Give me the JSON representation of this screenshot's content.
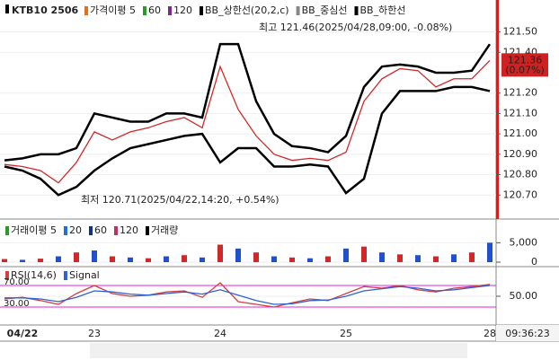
{
  "chart_data": [
    {
      "type": "line",
      "title": "KTB10 2506",
      "legend": [
        {
          "label": "가격이평 5",
          "color": "#e07020"
        },
        {
          "label": "60",
          "color": "#2a9a2a"
        },
        {
          "label": "120",
          "color": "#7a2a8a"
        },
        {
          "label": "BB_상한선(20,2,c)",
          "color": "#000000"
        },
        {
          "label": "BB_중심선",
          "color": "#888888"
        },
        {
          "label": "BB_하한선",
          "color": "#000000"
        }
      ],
      "categories": [
        null,
        "04/22",
        null,
        null,
        null,
        "23",
        null,
        null,
        null,
        null,
        null,
        null,
        "24",
        null,
        null,
        null,
        null,
        null,
        null,
        "25",
        null,
        null,
        null,
        null,
        null,
        null,
        null,
        "28"
      ],
      "series": [
        {
          "color": "#d02828",
          "values": [
            120.85,
            120.84,
            120.82,
            120.76,
            120.86,
            121.01,
            120.97,
            121.01,
            121.03,
            121.06,
            121.08,
            121.03,
            121.33,
            121.12,
            120.99,
            120.9,
            120.87,
            120.88,
            120.87,
            120.91,
            121.16,
            121.27,
            121.32,
            121.31,
            121.23,
            121.27,
            121.27,
            121.36
          ]
        },
        {
          "color": "#000000",
          "values": [
            120.87,
            120.88,
            120.9,
            120.9,
            120.93,
            121.1,
            121.08,
            121.06,
            121.06,
            121.1,
            121.1,
            121.08,
            121.44,
            121.44,
            121.16,
            121.0,
            120.94,
            120.93,
            120.91,
            120.99,
            121.23,
            121.33,
            121.34,
            121.33,
            121.3,
            121.3,
            121.31,
            121.44
          ]
        },
        {
          "color": "#000000",
          "values": [
            120.84,
            120.82,
            120.78,
            120.7,
            120.74,
            120.82,
            120.88,
            120.93,
            120.95,
            120.97,
            120.99,
            121.0,
            120.86,
            120.93,
            120.93,
            120.84,
            120.84,
            120.85,
            120.84,
            120.71,
            120.78,
            121.1,
            121.21,
            121.21,
            121.21,
            121.23,
            121.23,
            121.21
          ]
        }
      ],
      "annotations": [
        "최고 121.46(2025/04/28,09:00, -0.08%)",
        "최저 120.71(2025/04/22,14:20, +0.54%)"
      ],
      "last_price": {
        "value": 121.36,
        "label": "121.36"
      },
      "last_change_label": "(0.07%)",
      "ylim": [
        120.6,
        121.63
      ],
      "yticks": [
        {
          "value": 120.7,
          "label": "120.70"
        },
        {
          "value": 120.8,
          "label": "120.80"
        },
        {
          "value": 120.9,
          "label": "120.90"
        },
        {
          "value": 121.0,
          "label": "121.00"
        },
        {
          "value": 121.1,
          "label": "121.10"
        },
        {
          "value": 121.2,
          "label": "121.20"
        },
        {
          "value": 121.4,
          "label": "121.40"
        },
        {
          "value": 121.5,
          "label": "121.50"
        }
      ]
    },
    {
      "type": "bar",
      "legend": [
        {
          "label": "거래이평 5",
          "color": "#2a9a2a"
        },
        {
          "label": "20",
          "color": "#2070d0"
        },
        {
          "label": "60",
          "color": "#103080"
        },
        {
          "label": "120",
          "color": "#c03060"
        }
      ],
      "series": [
        {
          "name": "거래량",
          "color": "#d02828",
          "values": [
            800,
            600,
            900,
            1500,
            2500,
            3000,
            1500,
            1200,
            1000,
            1500,
            1800,
            1200,
            4500,
            3500,
            2500,
            1500,
            1200,
            1000,
            1500,
            3500,
            4000,
            2500,
            2000,
            1800,
            1500,
            2000,
            2500,
            5000
          ]
        }
      ],
      "ylim": [
        0,
        9700
      ],
      "yticks": [
        0,
        {
          "value": 5000,
          "label": "5,000"
        }
      ]
    },
    {
      "type": "line",
      "series": [
        {
          "name": "RSI(14,6)",
          "color": "#d04040",
          "values": [
            45,
            48,
            42,
            35,
            55,
            70,
            55,
            50,
            52,
            58,
            60,
            48,
            75,
            40,
            35,
            30,
            38,
            45,
            42,
            55,
            68,
            65,
            70,
            62,
            58,
            65,
            68,
            72
          ]
        },
        {
          "name": "Signal",
          "color": "#3060d0",
          "values": [
            47,
            47,
            45,
            40,
            48,
            60,
            58,
            54,
            52,
            55,
            58,
            54,
            62,
            52,
            42,
            35,
            36,
            42,
            43,
            50,
            60,
            64,
            68,
            65,
            60,
            62,
            66,
            70
          ]
        }
      ],
      "levels": [
        {
          "value": 70,
          "label": "70.00"
        },
        {
          "value": 30,
          "label": "30.00"
        }
      ],
      "level_color": "#e020e0",
      "ylim": [
        0,
        100
      ],
      "yticks": [
        {
          "value": 50,
          "label": "50.00"
        }
      ]
    }
  ],
  "toolbar": {
    "time": "09:36:23"
  }
}
